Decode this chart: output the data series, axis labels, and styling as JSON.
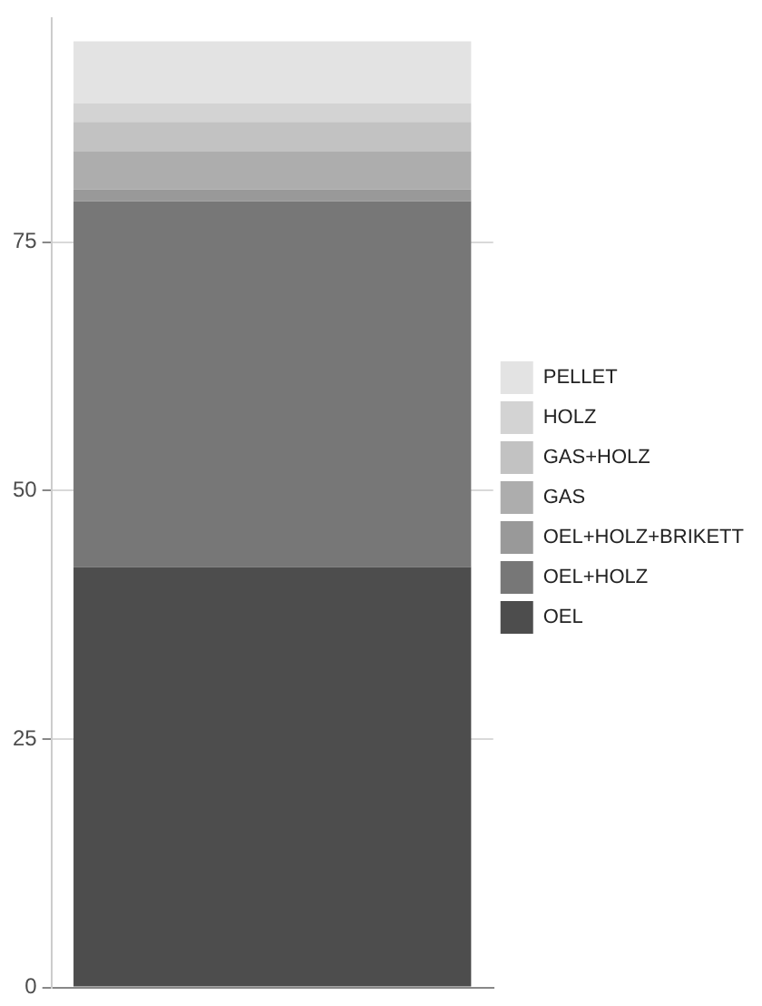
{
  "chart_data": {
    "type": "bar",
    "stacked": true,
    "categories": [
      null
    ],
    "series": [
      {
        "name": "OEL",
        "color": "#4d4d4d",
        "values": [
          42.3
        ]
      },
      {
        "name": "OEL+HOLZ",
        "color": "#777777",
        "values": [
          36.8
        ]
      },
      {
        "name": "OEL+HOLZ+BRIKETT",
        "color": "#999999",
        "values": [
          1.2
        ]
      },
      {
        "name": "GAS",
        "color": "#adadad",
        "values": [
          3.8
        ]
      },
      {
        "name": "GAS+HOLZ",
        "color": "#c2c2c2",
        "values": [
          3.0
        ]
      },
      {
        "name": "HOLZ",
        "color": "#d3d3d3",
        "values": [
          1.9
        ]
      },
      {
        "name": "PELLET",
        "color": "#e3e3e3",
        "values": [
          6.2
        ]
      }
    ],
    "ylim": [
      0,
      97.5
    ],
    "yticks": [
      0,
      25,
      50,
      75
    ],
    "grid": "y",
    "legend": "right",
    "tick_labels": "y"
  }
}
